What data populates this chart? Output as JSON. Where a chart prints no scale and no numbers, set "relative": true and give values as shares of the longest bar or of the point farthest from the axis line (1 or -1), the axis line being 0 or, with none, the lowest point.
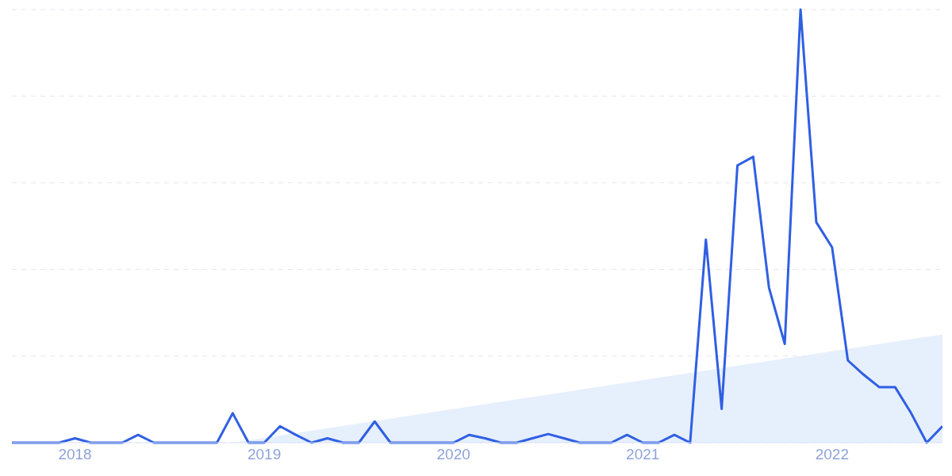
{
  "chart_data": {
    "type": "line",
    "relative": true,
    "grid": "y",
    "marker": "none",
    "line_style": "solid",
    "x": [
      "2017-09",
      "2017-10",
      "2017-11",
      "2017-12",
      "2018-01",
      "2018-02",
      "2018-03",
      "2018-04",
      "2018-05",
      "2018-06",
      "2018-07",
      "2018-08",
      "2018-09",
      "2018-10",
      "2018-11",
      "2018-12",
      "2019-01",
      "2019-02",
      "2019-03",
      "2019-04",
      "2019-05",
      "2019-06",
      "2019-07",
      "2019-08",
      "2019-09",
      "2019-10",
      "2019-11",
      "2019-12",
      "2020-01",
      "2020-02",
      "2020-03",
      "2020-04",
      "2020-05",
      "2020-06",
      "2020-07",
      "2020-08",
      "2020-09",
      "2020-10",
      "2020-11",
      "2020-12",
      "2021-01",
      "2021-02",
      "2021-03",
      "2021-04",
      "2021-05",
      "2021-06",
      "2021-07",
      "2021-08",
      "2021-09",
      "2021-10",
      "2021-11",
      "2021-12",
      "2022-01",
      "2022-02",
      "2022-03",
      "2022-04",
      "2022-05",
      "2022-06",
      "2022-07",
      "2022-08"
    ],
    "xlim": [
      "2017-09",
      "2022-08"
    ],
    "xticks": [
      {
        "value": "2018-01",
        "label": "2018"
      },
      {
        "value": "2019-01",
        "label": "2019"
      },
      {
        "value": "2020-01",
        "label": "2020"
      },
      {
        "value": "2021-01",
        "label": "2021"
      },
      {
        "value": "2022-01",
        "label": "2022"
      }
    ],
    "series": [
      {
        "type": "area",
        "color": "#e6effc",
        "x": [
          "2018-11",
          "2022-08"
        ],
        "values": [
          0,
          0.25
        ]
      },
      {
        "color": "#2f5fe3",
        "values": [
          0,
          0,
          0,
          0,
          0.01,
          0,
          0,
          0,
          0.018,
          0,
          0,
          0,
          0,
          0,
          0.068,
          0,
          0,
          0.038,
          0.018,
          0,
          0.01,
          0,
          0,
          0.049,
          0,
          0,
          0,
          0,
          0,
          0.018,
          0.01,
          0,
          0,
          0.01,
          0.02,
          0.01,
          0,
          0,
          0,
          0.018,
          0,
          0,
          0.018,
          0,
          0.469,
          0.078,
          0.64,
          0.66,
          0.358,
          0.228,
          1,
          0.509,
          0.451,
          0.19,
          0.157,
          0.128,
          0.128,
          0.069,
          0,
          0.038
        ]
      }
    ]
  }
}
